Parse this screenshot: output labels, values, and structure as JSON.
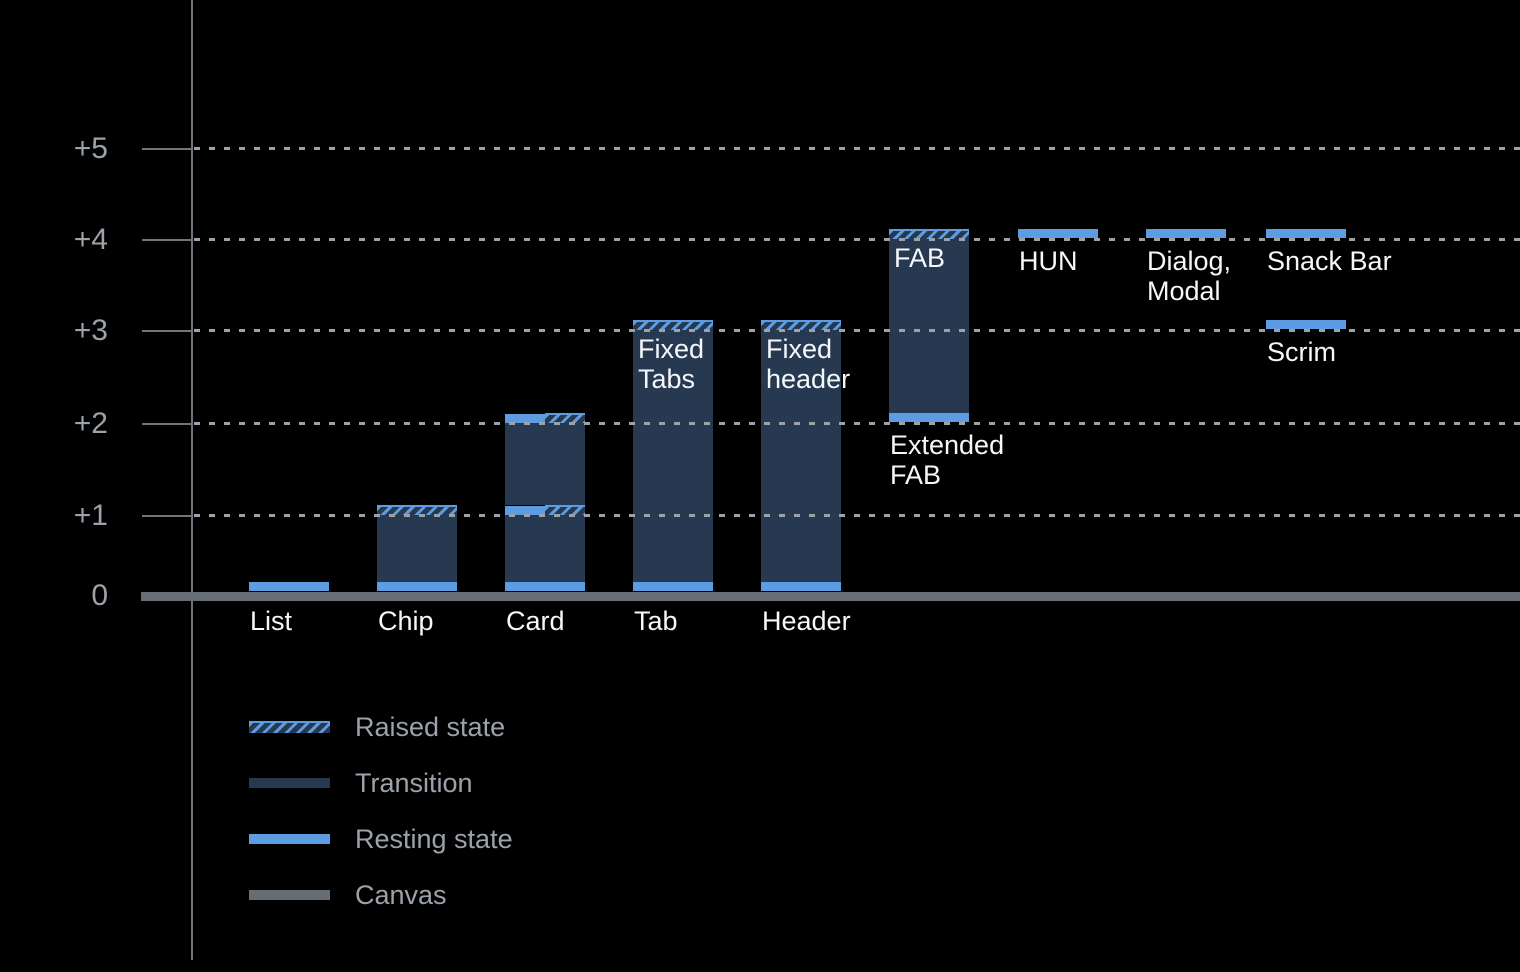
{
  "chart_data": {
    "type": "bar",
    "title": "",
    "description": "Material-style elevation diagram: UI components shown as bars between elevation levels above the canvas",
    "y_axis": {
      "tick_labels": [
        "+5",
        "+4",
        "+3",
        "+2",
        "+1",
        "0"
      ],
      "levels": [
        5,
        4,
        3,
        2,
        1,
        0
      ],
      "range": [
        0,
        5
      ],
      "grid": "dotted horizontal lines at +1 through +5"
    },
    "bars": [
      {
        "axis_label": "List",
        "segments": [
          {
            "type": "resting",
            "level": 0
          }
        ]
      },
      {
        "axis_label": "Chip",
        "segments": [
          {
            "type": "raised",
            "level": 1
          },
          {
            "type": "transition",
            "from": 0,
            "to": 1
          },
          {
            "type": "resting",
            "level": 0
          }
        ]
      },
      {
        "axis_label": "Card",
        "segments": [
          {
            "type": "resting_raised",
            "level": 2
          },
          {
            "type": "transition",
            "from": 1,
            "to": 2
          },
          {
            "type": "resting_raised",
            "level": 1
          },
          {
            "type": "transition",
            "from": 0,
            "to": 1
          },
          {
            "type": "resting",
            "level": 0
          }
        ]
      },
      {
        "axis_label": "Tab",
        "inner_label": "Fixed\nTabs",
        "inner_label_level": 3,
        "segments": [
          {
            "type": "raised",
            "level": 3
          },
          {
            "type": "transition",
            "from": 0,
            "to": 3
          },
          {
            "type": "resting",
            "level": 0
          }
        ]
      },
      {
        "axis_label": "Header",
        "inner_label": "Fixed\nheader",
        "inner_label_level": 3,
        "segments": [
          {
            "type": "raised",
            "level": 3
          },
          {
            "type": "transition",
            "from": 0,
            "to": 3
          },
          {
            "type": "resting",
            "level": 0
          }
        ]
      },
      {
        "inner_label": "FAB",
        "inner_label_level": 4,
        "below_label": "Extended\nFAB",
        "below_label_level": 2,
        "segments": [
          {
            "type": "raised",
            "level": 4
          },
          {
            "type": "transition",
            "from": 2,
            "to": 4
          },
          {
            "type": "resting",
            "level": 2
          }
        ]
      },
      {
        "below_label": "HUN",
        "below_label_level": 4,
        "segments": [
          {
            "type": "resting",
            "level": 4
          }
        ]
      },
      {
        "below_label": "Dialog,\nModal",
        "below_label_level": 4,
        "segments": [
          {
            "type": "resting",
            "level": 4
          }
        ]
      },
      {
        "below_label": "Snack Bar",
        "below_label_level": 4,
        "segments": [
          {
            "type": "resting",
            "level": 4
          }
        ]
      },
      {
        "below_label": "Scrim",
        "below_label_level": 3,
        "segments": [
          {
            "type": "resting",
            "level": 3
          }
        ]
      }
    ],
    "legend": {
      "position": "bottom-left",
      "items": [
        {
          "key": "raised",
          "label": "Raised state"
        },
        {
          "key": "transition",
          "label": "Transition"
        },
        {
          "key": "resting",
          "label": "Resting state"
        },
        {
          "key": "canvas",
          "label": "Canvas"
        }
      ]
    },
    "colors": {
      "background": "#000000",
      "resting_state": "#5B9CE3",
      "raised_state_stripes": "#5B9CE3",
      "transition": "#263950",
      "canvas": "#666D75",
      "grid_dots": "#9CA2A8",
      "axis_line": "#6E747B",
      "axis_text": "#9CA2A9",
      "bar_label_text": "#F5F7FA"
    }
  }
}
